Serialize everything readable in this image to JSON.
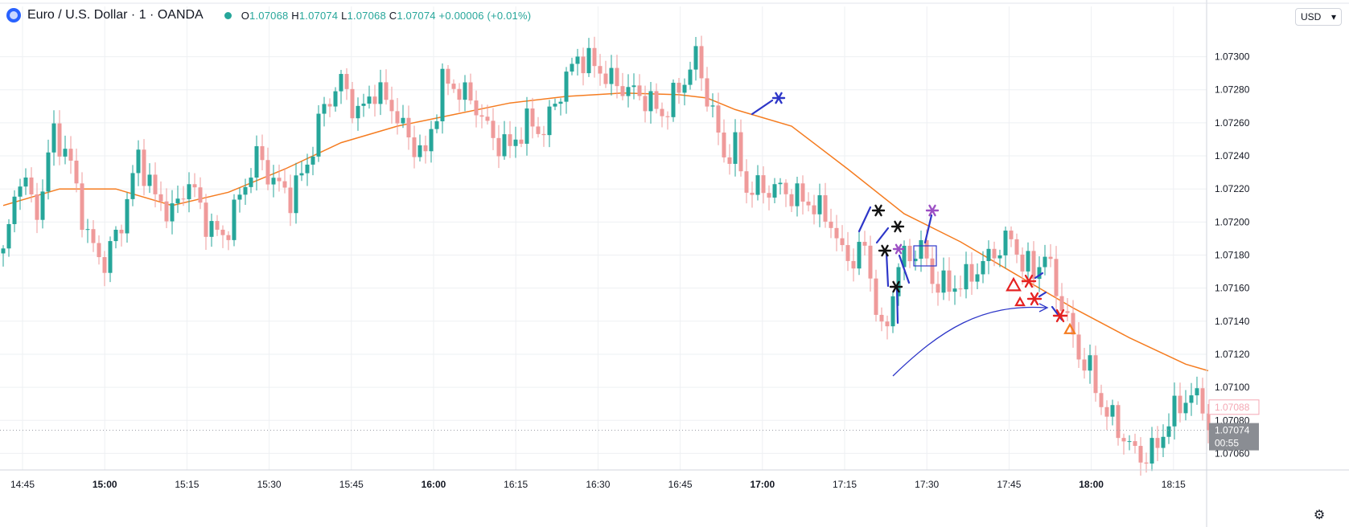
{
  "header": {
    "symbol": "Euro / U.S. Dollar · 1 · OANDA",
    "open_label": "O",
    "open": "1.07068",
    "high_label": "H",
    "high": "1.07074",
    "low_label": "L",
    "low": "1.07068",
    "close_label": "C",
    "close": "1.07074",
    "change": "+0.00006 (+0.01%)"
  },
  "currency_selector": "USD",
  "colors": {
    "up": "#26a69a",
    "down": "#ef9a9a",
    "ma": "#f57c20",
    "grid": "#eef0f3",
    "axis_text": "#131722",
    "annotation_blue": "#2d36c8",
    "annotation_red": "#e52222"
  },
  "chart_data": {
    "type": "candlestick",
    "ylim": [
      1.0705,
      1.0731
    ],
    "y_ticks": [
      "1.07300",
      "1.07280",
      "1.07260",
      "1.07240",
      "1.07220",
      "1.07200",
      "1.07180",
      "1.07160",
      "1.07140",
      "1.07120",
      "1.07100",
      "1.07080",
      "1.07060"
    ],
    "x_ticks": [
      {
        "label": "14:45",
        "bold": false
      },
      {
        "label": "15:00",
        "bold": true
      },
      {
        "label": "15:15",
        "bold": false
      },
      {
        "label": "15:30",
        "bold": false
      },
      {
        "label": "15:45",
        "bold": false
      },
      {
        "label": "16:00",
        "bold": true
      },
      {
        "label": "16:15",
        "bold": false
      },
      {
        "label": "16:30",
        "bold": false
      },
      {
        "label": "16:45",
        "bold": false
      },
      {
        "label": "17:00",
        "bold": true
      },
      {
        "label": "17:15",
        "bold": false
      },
      {
        "label": "17:30",
        "bold": false
      },
      {
        "label": "17:45",
        "bold": false
      },
      {
        "label": "18:00",
        "bold": true
      },
      {
        "label": "18:15",
        "bold": false
      }
    ],
    "last_price": "1.07074",
    "countdown": "00:55",
    "marker_price": "1.07088",
    "anchors": [
      [
        0,
        1.0718
      ],
      [
        3,
        1.0723
      ],
      [
        6,
        1.07205
      ],
      [
        9,
        1.07255
      ],
      [
        12,
        1.07235
      ],
      [
        15,
        1.0719
      ],
      [
        18,
        1.07175
      ],
      [
        21,
        1.072
      ],
      [
        24,
        1.0724
      ],
      [
        27,
        1.07215
      ],
      [
        30,
        1.07205
      ],
      [
        33,
        1.07225
      ],
      [
        36,
        1.072
      ],
      [
        39,
        1.0719
      ],
      [
        42,
        1.07215
      ],
      [
        45,
        1.0724
      ],
      [
        48,
        1.07225
      ],
      [
        51,
        1.07215
      ],
      [
        54,
        1.07235
      ],
      [
        57,
        1.0727
      ],
      [
        60,
        1.07285
      ],
      [
        63,
        1.07265
      ],
      [
        66,
        1.0728
      ],
      [
        69,
        1.0727
      ],
      [
        72,
        1.0725
      ],
      [
        75,
        1.0724
      ],
      [
        78,
        1.07285
      ],
      [
        81,
        1.0728
      ],
      [
        84,
        1.0727
      ],
      [
        87,
        1.0725
      ],
      [
        90,
        1.07245
      ],
      [
        93,
        1.0726
      ],
      [
        96,
        1.07255
      ],
      [
        99,
        1.0728
      ],
      [
        102,
        1.073
      ],
      [
        105,
        1.07295
      ],
      [
        108,
        1.07285
      ],
      [
        111,
        1.0728
      ],
      [
        114,
        1.07275
      ],
      [
        117,
        1.07265
      ],
      [
        120,
        1.0728
      ],
      [
        123,
        1.073
      ],
      [
        126,
        1.07265
      ],
      [
        128,
        1.0724
      ],
      [
        130,
        1.07245
      ],
      [
        132,
        1.0722
      ],
      [
        135,
        1.0722
      ],
      [
        138,
        1.0722
      ],
      [
        141,
        1.07215
      ],
      [
        144,
        1.0721
      ],
      [
        147,
        1.072
      ],
      [
        149,
        1.0718
      ],
      [
        151,
        1.07178
      ],
      [
        153,
        1.07185
      ],
      [
        155,
        1.0715
      ],
      [
        156,
        1.0713
      ],
      [
        157,
        1.0714
      ],
      [
        159,
        1.07175
      ],
      [
        161,
        1.0718
      ],
      [
        163,
        1.07185
      ],
      [
        165,
        1.07165
      ],
      [
        168,
        1.0716
      ],
      [
        171,
        1.07165
      ],
      [
        174,
        1.07175
      ],
      [
        177,
        1.07185
      ],
      [
        179,
        1.0719
      ],
      [
        181,
        1.07175
      ],
      [
        183,
        1.0717
      ],
      [
        185,
        1.0718
      ],
      [
        187,
        1.0716
      ],
      [
        189,
        1.0714
      ],
      [
        191,
        1.0712
      ],
      [
        193,
        1.0711
      ],
      [
        195,
        1.0709
      ],
      [
        197,
        1.0708
      ],
      [
        199,
        1.0707
      ],
      [
        201,
        1.0706
      ],
      [
        203,
        1.07058
      ],
      [
        205,
        1.07065
      ],
      [
        207,
        1.0708
      ],
      [
        209,
        1.0709
      ],
      [
        211,
        1.07095
      ],
      [
        213,
        1.0709
      ],
      [
        214,
        1.07074
      ]
    ],
    "ma": [
      [
        0,
        1.0721
      ],
      [
        10,
        1.0722
      ],
      [
        20,
        1.0722
      ],
      [
        30,
        1.0721
      ],
      [
        40,
        1.07218
      ],
      [
        50,
        1.07232
      ],
      [
        60,
        1.07248
      ],
      [
        70,
        1.07258
      ],
      [
        80,
        1.07265
      ],
      [
        90,
        1.07272
      ],
      [
        100,
        1.07276
      ],
      [
        110,
        1.07278
      ],
      [
        120,
        1.07277
      ],
      [
        125,
        1.07275
      ],
      [
        130,
        1.07268
      ],
      [
        140,
        1.07258
      ],
      [
        150,
        1.07232
      ],
      [
        160,
        1.07205
      ],
      [
        170,
        1.07188
      ],
      [
        180,
        1.07168
      ],
      [
        190,
        1.07148
      ],
      [
        200,
        1.0713
      ],
      [
        210,
        1.07114
      ],
      [
        214,
        1.0711
      ]
    ]
  }
}
